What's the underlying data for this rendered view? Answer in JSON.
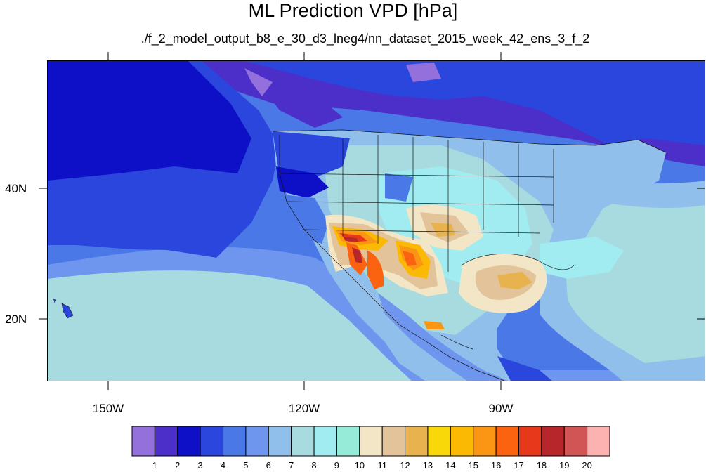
{
  "title": "ML Prediction VPD [hPa]",
  "subtitle": "./f_2_model_output_b8_e_30_d3_lneg4/nn_dataset_2015_week_42_ens_3_f_2",
  "axes": {
    "lat_labels": [
      "40N",
      "20N"
    ],
    "lon_labels": [
      "150W",
      "120W",
      "90W"
    ]
  },
  "colorbar": {
    "levels": [
      "1",
      "2",
      "3",
      "4",
      "5",
      "6",
      "7",
      "8",
      "9",
      "10",
      "11",
      "12",
      "13",
      "14",
      "15",
      "16",
      "17",
      "18",
      "19",
      "20"
    ],
    "colors": [
      "#9370db",
      "#4b2fc8",
      "#0d10c6",
      "#2a46dd",
      "#4a78e6",
      "#6f96ee",
      "#8fbfea",
      "#a8dbe0",
      "#a0ecf0",
      "#96ebd8",
      "#f3e6c6",
      "#e2c39a",
      "#e8b34e",
      "#f9d80a",
      "#fbb904",
      "#fa9613",
      "#fb6310",
      "#e8381c",
      "#b7262b",
      "#d25555",
      "#fdb2b2"
    ]
  }
}
